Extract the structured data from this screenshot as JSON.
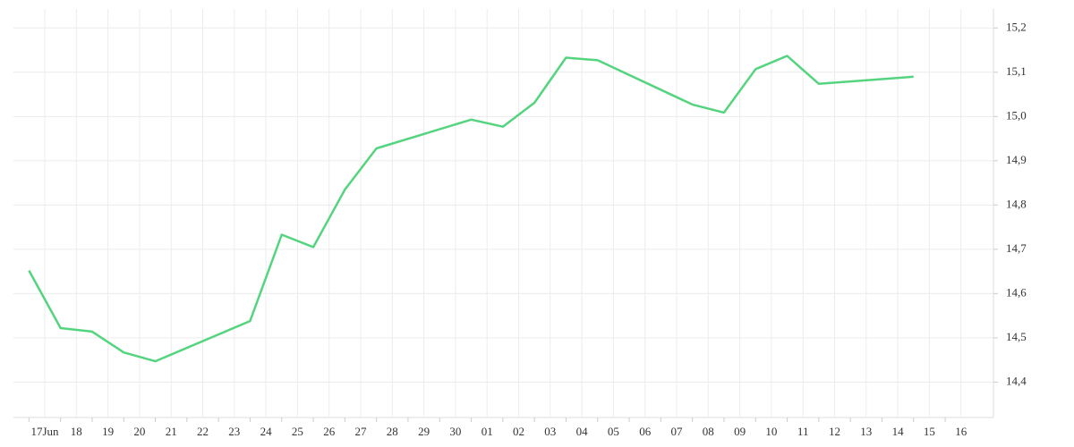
{
  "chart_data": {
    "type": "line",
    "categories": [
      "17Jun",
      "18",
      "19",
      "20",
      "21",
      "22",
      "23",
      "24",
      "25",
      "26",
      "27",
      "28",
      "29",
      "30",
      "01",
      "02",
      "03",
      "04",
      "05",
      "06",
      "07",
      "08",
      "09",
      "10",
      "11",
      "12",
      "13",
      "14",
      "15",
      "16"
    ],
    "x": [
      "17Jun",
      "18",
      "19",
      "20",
      "21",
      "24",
      "25",
      "26",
      "27",
      "28",
      "01",
      "02",
      "03",
      "04",
      "05",
      "08",
      "09",
      "10",
      "11",
      "12",
      "15"
    ],
    "series": [
      {
        "color": "#55d47f",
        "values": [
          14.652,
          14.522,
          14.514,
          14.467,
          14.447,
          14.538,
          14.733,
          14.705,
          14.835,
          14.928,
          14.993,
          14.977,
          15.031,
          15.133,
          15.127,
          15.027,
          15.009,
          15.107,
          15.137,
          15.074,
          15.09
        ]
      }
    ],
    "ylim": [
      14.32,
      15.243
    ],
    "yticks": [
      {
        "value": 14.4,
        "label": "14,4"
      },
      {
        "value": 14.5,
        "label": "14,5"
      },
      {
        "value": 14.6,
        "label": "14,6"
      },
      {
        "value": 14.7,
        "label": "14,7"
      },
      {
        "value": 14.8,
        "label": "14,8"
      },
      {
        "value": 14.9,
        "label": "14,9"
      },
      {
        "value": 15.0,
        "label": "15,0"
      },
      {
        "value": 15.1,
        "label": "15,1"
      },
      {
        "value": 15.2,
        "label": "15,2"
      }
    ],
    "grid": true
  }
}
